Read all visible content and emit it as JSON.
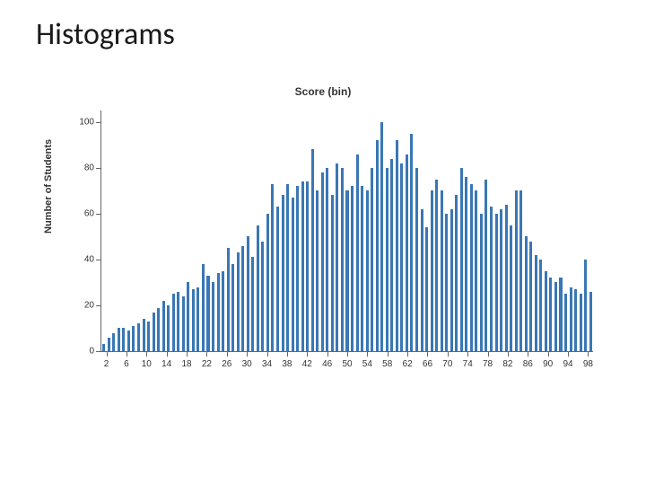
{
  "slide": {
    "title": "Histograms"
  },
  "chart": {
    "type": "histogram",
    "title": "Score (bin)",
    "ylabel": "Number of Students",
    "title_fontsize": 12,
    "ylabel_fontsize": 11,
    "bar_color": "#3a77b4",
    "axis_color": "#666666",
    "background_color": "#ffffff",
    "text_color": "#333333",
    "bar_width_ratio": 0.55,
    "ylim": [
      0,
      105
    ],
    "yticks": [
      0,
      20,
      40,
      60,
      80,
      100
    ],
    "xticks": [
      2,
      6,
      10,
      14,
      18,
      22,
      26,
      30,
      34,
      38,
      42,
      46,
      50,
      54,
      58,
      62,
      66,
      70,
      74,
      78,
      82,
      86,
      90,
      94,
      98
    ],
    "x_range": [
      1,
      99
    ],
    "values": [
      3,
      6,
      8,
      10,
      10,
      9,
      11,
      12,
      14,
      13,
      17,
      19,
      22,
      20,
      25,
      26,
      24,
      30,
      27,
      28,
      38,
      33,
      30,
      34,
      35,
      45,
      38,
      43,
      46,
      50,
      41,
      55,
      48,
      60,
      73,
      63,
      68,
      73,
      67,
      72,
      74,
      74,
      88,
      70,
      78,
      80,
      68,
      82,
      80,
      70,
      72,
      86,
      72,
      70,
      80,
      92,
      100,
      80,
      84,
      92,
      82,
      86,
      95,
      80,
      62,
      54,
      70,
      75,
      70,
      60,
      62,
      68,
      80,
      76,
      73,
      70,
      60,
      75,
      63,
      60,
      62,
      64,
      55,
      70,
      70,
      50,
      48,
      42,
      40,
      35,
      32,
      30,
      32,
      25,
      28,
      27,
      25,
      40,
      26
    ]
  }
}
